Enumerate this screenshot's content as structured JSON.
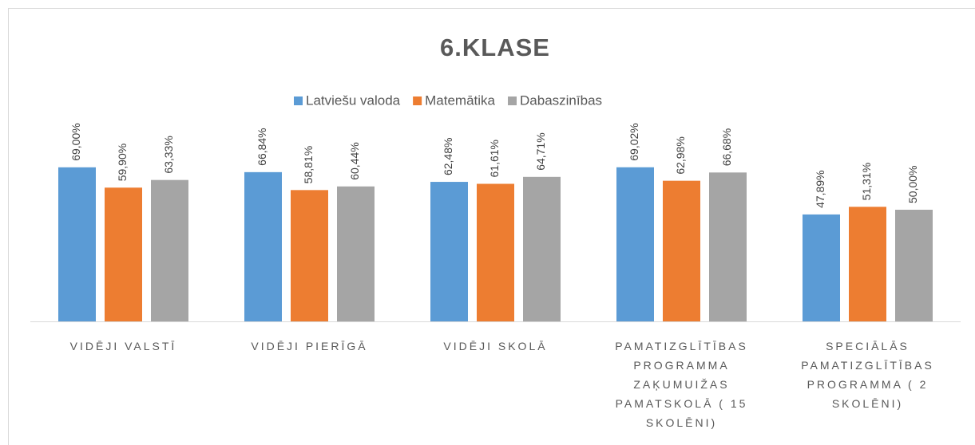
{
  "chart_data": {
    "type": "bar",
    "title": "6.KLASE",
    "categories": [
      "VIDĒJI VALSTĪ",
      "VIDĒJI PIERĪGĀ",
      "VIDĒJI SKOLĀ",
      "PAMATIZGLĪTĪBAS PROGRAMMA ZAĶUMUIŽAS PAMATSKOLĀ ( 15 SKOLĒNI)",
      "SPECIĀLĀS PAMATIZGLĪTĪBAS PROGRAMMA ( 2 SKOLĒNI)"
    ],
    "series": [
      {
        "name": "Latviešu valoda",
        "color": "#5b9bd5",
        "values": [
          69.0,
          66.84,
          62.48,
          69.02,
          47.89
        ],
        "value_labels": [
          "69,00%",
          "66,84%",
          "62,48%",
          "69,02%",
          "47,89%"
        ]
      },
      {
        "name": "Matemātika",
        "color": "#ed7d31",
        "values": [
          59.9,
          58.81,
          61.61,
          62.98,
          51.31
        ],
        "value_labels": [
          "59,90%",
          "58,81%",
          "61,61%",
          "62,98%",
          "51,31%"
        ]
      },
      {
        "name": "Dabaszinības",
        "color": "#a5a5a5",
        "values": [
          63.33,
          60.44,
          64.71,
          66.68,
          50.0
        ],
        "value_labels": [
          "63,33%",
          "60,44%",
          "64,71%",
          "66,68%",
          "50,00%"
        ]
      }
    ],
    "ylim": [
      0,
      70
    ],
    "legend": "top"
  }
}
